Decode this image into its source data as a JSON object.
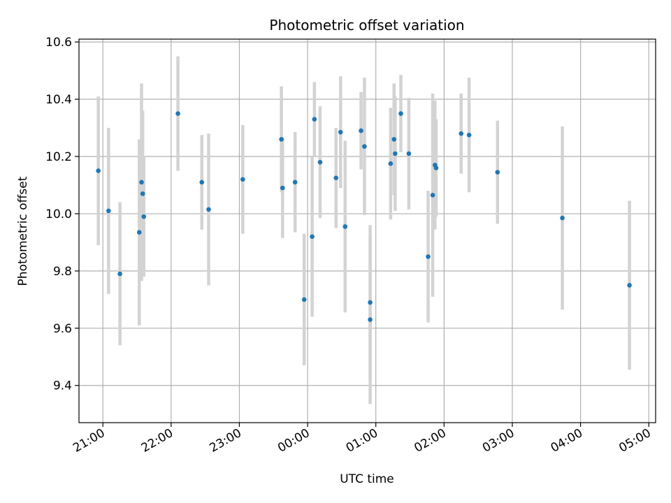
{
  "chart_data": {
    "type": "scatter",
    "title": "Photometric offset variation",
    "xlabel": "UTC time",
    "ylabel": "Photometric offset",
    "x_tick_labels": [
      "21:00",
      "22:00",
      "23:00",
      "00:00",
      "01:00",
      "02:00",
      "03:00",
      "04:00",
      "05:00"
    ],
    "y_tick_labels": [
      "9.4",
      "9.6",
      "9.8",
      "10.0",
      "10.2",
      "10.4",
      "10.6"
    ],
    "xlim": [
      "20:39",
      "05:06"
    ],
    "ylim": [
      9.27,
      10.61
    ],
    "grid": true,
    "point_color": "#1f77b4",
    "errorbar_color": "#d3d3d3",
    "points": [
      {
        "x": "20:56",
        "y": 10.15,
        "err": 0.26
      },
      {
        "x": "21:05",
        "y": 10.01,
        "err": 0.29
      },
      {
        "x": "21:15",
        "y": 9.79,
        "err": 0.25
      },
      {
        "x": "21:32",
        "y": 9.935,
        "err": 0.325
      },
      {
        "x": "21:34",
        "y": 10.11,
        "err": 0.345
      },
      {
        "x": "21:35",
        "y": 10.07,
        "err": 0.29
      },
      {
        "x": "21:36",
        "y": 9.99,
        "err": 0.21
      },
      {
        "x": "22:06",
        "y": 10.35,
        "err": 0.2
      },
      {
        "x": "22:27",
        "y": 10.11,
        "err": 0.165
      },
      {
        "x": "22:33",
        "y": 10.015,
        "err": 0.265
      },
      {
        "x": "23:03",
        "y": 10.12,
        "err": 0.19
      },
      {
        "x": "23:37",
        "y": 10.26,
        "err": 0.185
      },
      {
        "x": "23:38",
        "y": 10.09,
        "err": 0.175
      },
      {
        "x": "23:49",
        "y": 10.11,
        "err": 0.175
      },
      {
        "x": "23:57",
        "y": 9.7,
        "err": 0.23
      },
      {
        "x": "00:04",
        "y": 9.92,
        "err": 0.28
      },
      {
        "x": "00:06",
        "y": 10.33,
        "err": 0.13
      },
      {
        "x": "00:11",
        "y": 10.18,
        "err": 0.195
      },
      {
        "x": "00:25",
        "y": 10.125,
        "err": 0.175
      },
      {
        "x": "00:29",
        "y": 10.285,
        "err": 0.195
      },
      {
        "x": "00:33",
        "y": 9.955,
        "err": 0.3
      },
      {
        "x": "00:47",
        "y": 10.29,
        "err": 0.135
      },
      {
        "x": "00:50",
        "y": 10.235,
        "err": 0.24
      },
      {
        "x": "00:55",
        "y": 9.69,
        "err": 0.27
      },
      {
        "x": "00:55",
        "y": 9.63,
        "err": 0.295
      },
      {
        "x": "01:13",
        "y": 10.175,
        "err": 0.195
      },
      {
        "x": "01:16",
        "y": 10.26,
        "err": 0.195
      },
      {
        "x": "01:17",
        "y": 10.21,
        "err": 0.2
      },
      {
        "x": "01:22",
        "y": 10.35,
        "err": 0.135
      },
      {
        "x": "01:29",
        "y": 10.21,
        "err": 0.195
      },
      {
        "x": "01:46",
        "y": 9.85,
        "err": 0.23
      },
      {
        "x": "01:50",
        "y": 10.065,
        "err": 0.355
      },
      {
        "x": "01:52",
        "y": 10.17,
        "err": 0.225
      },
      {
        "x": "01:53",
        "y": 10.16,
        "err": 0.17
      },
      {
        "x": "02:15",
        "y": 10.28,
        "err": 0.14
      },
      {
        "x": "02:22",
        "y": 10.275,
        "err": 0.2
      },
      {
        "x": "02:47",
        "y": 10.145,
        "err": 0.18
      },
      {
        "x": "03:44",
        "y": 9.985,
        "err": 0.32
      },
      {
        "x": "04:43",
        "y": 9.75,
        "err": 0.295
      }
    ]
  }
}
